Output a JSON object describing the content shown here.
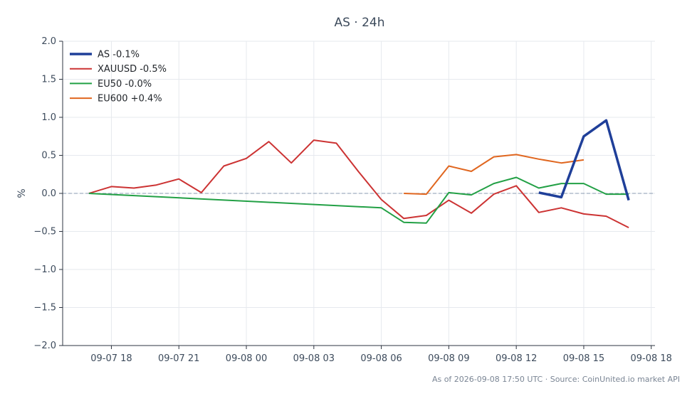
{
  "chart_data": {
    "type": "line",
    "title": "AS · 24h",
    "xlabel": "",
    "ylabel": "%",
    "ylim": [
      -2.0,
      2.0
    ],
    "yticks": [
      -2.0,
      -1.5,
      -1.0,
      -0.5,
      0.0,
      0.5,
      1.0,
      1.5,
      2.0
    ],
    "ytick_labels": [
      "−2.0",
      "−1.5",
      "−1.0",
      "−0.5",
      "0.0",
      "0.5",
      "1.0",
      "1.5",
      "2.0"
    ],
    "xlim": [
      "2026-09-07 15:50",
      "2026-09-08 18:10"
    ],
    "xticks": [
      "2026-09-07 18:00",
      "2026-09-07 21:00",
      "2026-09-08 00:00",
      "2026-09-08 03:00",
      "2026-09-08 06:00",
      "2026-09-08 09:00",
      "2026-09-08 12:00",
      "2026-09-08 15:00",
      "2026-09-08 18:00"
    ],
    "xtick_labels": [
      "09-07 18",
      "09-07 21",
      "09-08 00",
      "09-08 03",
      "09-08 06",
      "09-08 09",
      "09-08 12",
      "09-08 15",
      "09-08 18"
    ],
    "grid": true,
    "zero_line": true,
    "legend_position": "top-left",
    "series": [
      {
        "name": "AS -0.1%",
        "color": "#1f3f99",
        "emphasis": true,
        "x": [
          "2026-09-08 13:00",
          "2026-09-08 14:00",
          "2026-09-08 15:00",
          "2026-09-08 16:00",
          "2026-09-08 17:00"
        ],
        "values": [
          0.01,
          -0.05,
          0.75,
          0.96,
          -0.09
        ]
      },
      {
        "name": "XAUUSD -0.5%",
        "color": "#cc3333",
        "x": [
          "2026-09-07 17:00",
          "2026-09-07 18:00",
          "2026-09-07 19:00",
          "2026-09-07 20:00",
          "2026-09-07 21:00",
          "2026-09-07 22:00",
          "2026-09-07 23:00",
          "2026-09-08 00:00",
          "2026-09-08 01:00",
          "2026-09-08 02:00",
          "2026-09-08 03:00",
          "2026-09-08 04:00",
          "2026-09-08 05:00",
          "2026-09-08 06:00",
          "2026-09-08 07:00",
          "2026-09-08 08:00",
          "2026-09-08 09:00",
          "2026-09-08 10:00",
          "2026-09-08 11:00",
          "2026-09-08 12:00",
          "2026-09-08 13:00",
          "2026-09-08 14:00",
          "2026-09-08 15:00",
          "2026-09-08 16:00",
          "2026-09-08 17:00"
        ],
        "values": [
          0.0,
          0.09,
          0.07,
          0.11,
          0.19,
          0.01,
          0.36,
          0.46,
          0.68,
          0.4,
          0.7,
          0.66,
          0.28,
          -0.08,
          -0.33,
          -0.29,
          -0.09,
          -0.26,
          -0.01,
          0.1,
          -0.25,
          -0.19,
          -0.27,
          -0.3,
          -0.45
        ]
      },
      {
        "name": "EU50 -0.0%",
        "color": "#22a045",
        "x": [
          "2026-09-07 17:00",
          "2026-09-08 06:00",
          "2026-09-08 07:00",
          "2026-09-08 08:00",
          "2026-09-08 09:00",
          "2026-09-08 10:00",
          "2026-09-08 11:00",
          "2026-09-08 12:00",
          "2026-09-08 13:00",
          "2026-09-08 14:00",
          "2026-09-08 15:00",
          "2026-09-08 16:00",
          "2026-09-08 17:00"
        ],
        "values": [
          0.0,
          -0.19,
          -0.38,
          -0.39,
          0.01,
          -0.02,
          0.13,
          0.21,
          0.07,
          0.13,
          0.13,
          -0.01,
          -0.01
        ]
      },
      {
        "name": "EU600 +0.4%",
        "color": "#e0661f",
        "x": [
          "2026-09-08 07:00",
          "2026-09-08 08:00",
          "2026-09-08 09:00",
          "2026-09-08 10:00",
          "2026-09-08 11:00",
          "2026-09-08 12:00",
          "2026-09-08 13:00",
          "2026-09-08 14:00",
          "2026-09-08 15:00"
        ],
        "values": [
          0.0,
          -0.01,
          0.36,
          0.29,
          0.48,
          0.51,
          0.45,
          0.4,
          0.44
        ]
      }
    ]
  },
  "footnote": "As of 2026-09-08 17:50 UTC · Source: CoinUnited.io market API",
  "colors": {
    "axis": "#2e3440",
    "grid": "#e6e9ee",
    "zero_line": "#8a9bb0",
    "text": "#3d4b5c"
  }
}
